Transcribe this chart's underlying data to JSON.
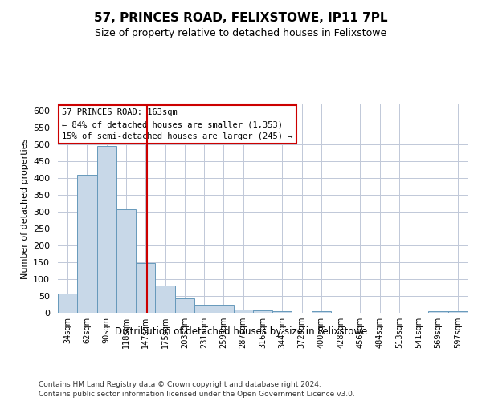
{
  "title": "57, PRINCES ROAD, FELIXSTOWE, IP11 7PL",
  "subtitle": "Size of property relative to detached houses in Felixstowe",
  "xlabel": "Distribution of detached houses by size in Felixstowe",
  "ylabel": "Number of detached properties",
  "footer_line1": "Contains HM Land Registry data © Crown copyright and database right 2024.",
  "footer_line2": "Contains public sector information licensed under the Open Government Licence v3.0.",
  "annotation_line1": "57 PRINCES ROAD: 163sqm",
  "annotation_line2": "← 84% of detached houses are smaller (1,353)",
  "annotation_line3": "15% of semi-detached houses are larger (245) →",
  "property_size": 163,
  "bar_color": "#c8d8e8",
  "bar_edge_color": "#6699bb",
  "vline_color": "#cc0000",
  "annotation_box_color": "#cc0000",
  "background_color": "#ffffff",
  "grid_color": "#c0c8d8",
  "bin_edges": [
    34,
    62,
    90,
    118,
    147,
    175,
    203,
    231,
    259,
    287,
    316,
    344,
    372,
    400,
    428,
    456,
    484,
    513,
    541,
    569,
    597
  ],
  "bin_labels": [
    "34sqm",
    "62sqm",
    "90sqm",
    "118sqm",
    "147sqm",
    "175sqm",
    "203sqm",
    "231sqm",
    "259sqm",
    "287sqm",
    "316sqm",
    "344sqm",
    "372sqm",
    "400sqm",
    "428sqm",
    "456sqm",
    "484sqm",
    "513sqm",
    "541sqm",
    "569sqm",
    "597sqm"
  ],
  "counts": [
    57,
    411,
    495,
    307,
    148,
    82,
    44,
    24,
    24,
    10,
    7,
    4,
    0,
    5,
    0,
    0,
    0,
    0,
    0,
    4,
    4
  ],
  "ylim": [
    0,
    620
  ],
  "yticks": [
    0,
    50,
    100,
    150,
    200,
    250,
    300,
    350,
    400,
    450,
    500,
    550,
    600
  ]
}
